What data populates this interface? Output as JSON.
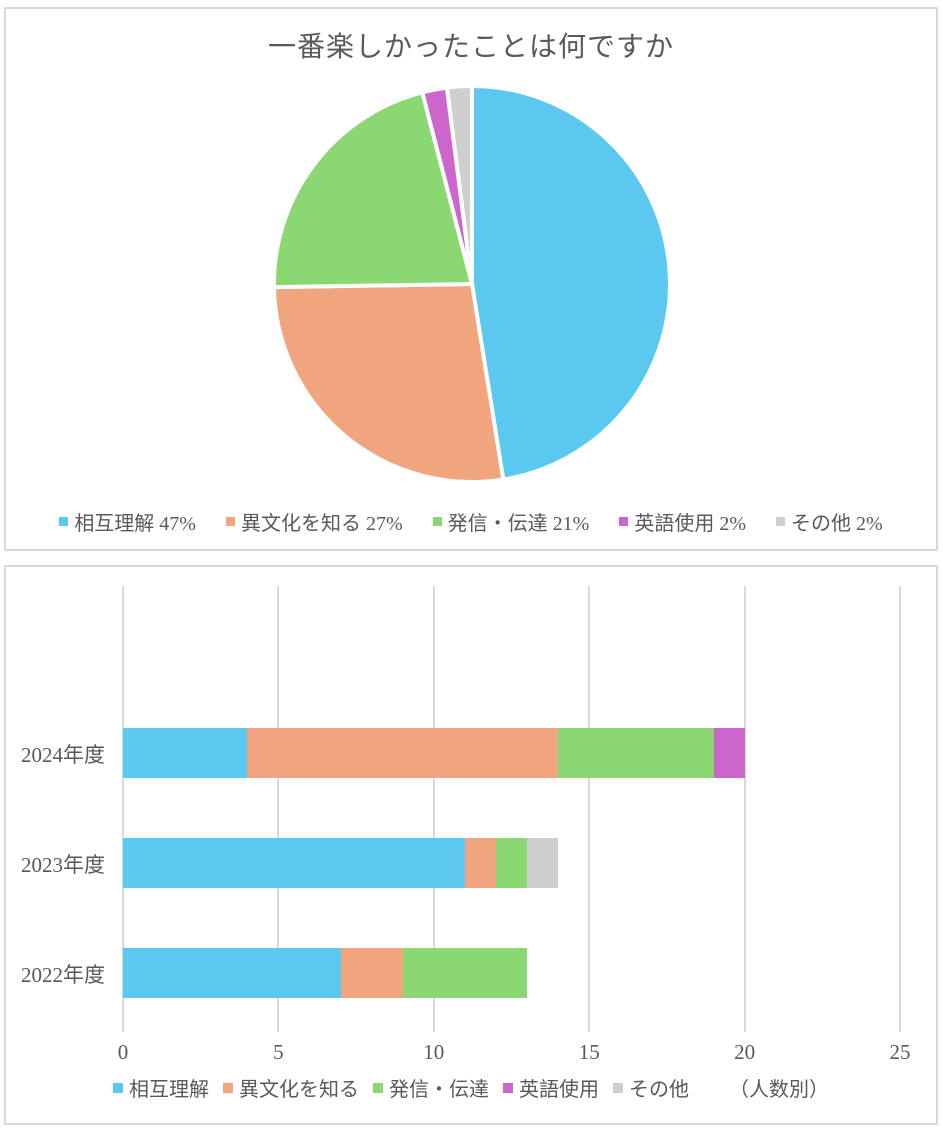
{
  "colors": {
    "blue": "#5BC8F0",
    "orange": "#F0A57E",
    "green": "#8BD873",
    "purple": "#CC66CC",
    "gray": "#CFCFCF",
    "panel_border": "#D9D9D9",
    "gridline": "#D9D9D9",
    "text": "#595959"
  },
  "chart_data": [
    {
      "type": "pie",
      "title": "一番楽しかったことは何ですか",
      "labels": [
        "相互理解",
        "異文化を知る",
        "発信・伝達",
        "英語使用",
        "その他"
      ],
      "values": [
        47,
        27,
        21,
        2,
        2
      ],
      "unit": "%",
      "colors": [
        "#5BC8F0",
        "#F0A57E",
        "#8BD873",
        "#CC66CC",
        "#CFCFCF"
      ],
      "start_angle": "top",
      "direction": "clockwise",
      "legend_position": "bottom",
      "legend_labels": [
        "相互理解 47%",
        "異文化を知る 27%",
        "発信・伝達 21%",
        "英語使用 2%",
        "その他 2%"
      ]
    },
    {
      "type": "bar",
      "orientation": "horizontal",
      "stacked": true,
      "categories": [
        "2024年度",
        "2023年度",
        "2022年度"
      ],
      "series": [
        {
          "name": "相互理解",
          "color": "#5BC8F0",
          "values": [
            4,
            11,
            7
          ]
        },
        {
          "name": "異文化を知る",
          "color": "#F0A57E",
          "values": [
            10,
            1,
            2
          ]
        },
        {
          "name": "発信・伝達",
          "color": "#8BD873",
          "values": [
            5,
            1,
            4
          ]
        },
        {
          "name": "英語使用",
          "color": "#CC66CC",
          "values": [
            1,
            0,
            0
          ]
        },
        {
          "name": "その他",
          "color": "#CFCFCF",
          "values": [
            0,
            1,
            0
          ]
        }
      ],
      "totals": [
        20,
        14,
        13
      ],
      "xlim": [
        0,
        25
      ],
      "xticks": [
        0,
        5,
        10,
        15,
        20,
        25
      ],
      "grid": true,
      "legend_position": "bottom",
      "note": "（人数別）"
    }
  ]
}
